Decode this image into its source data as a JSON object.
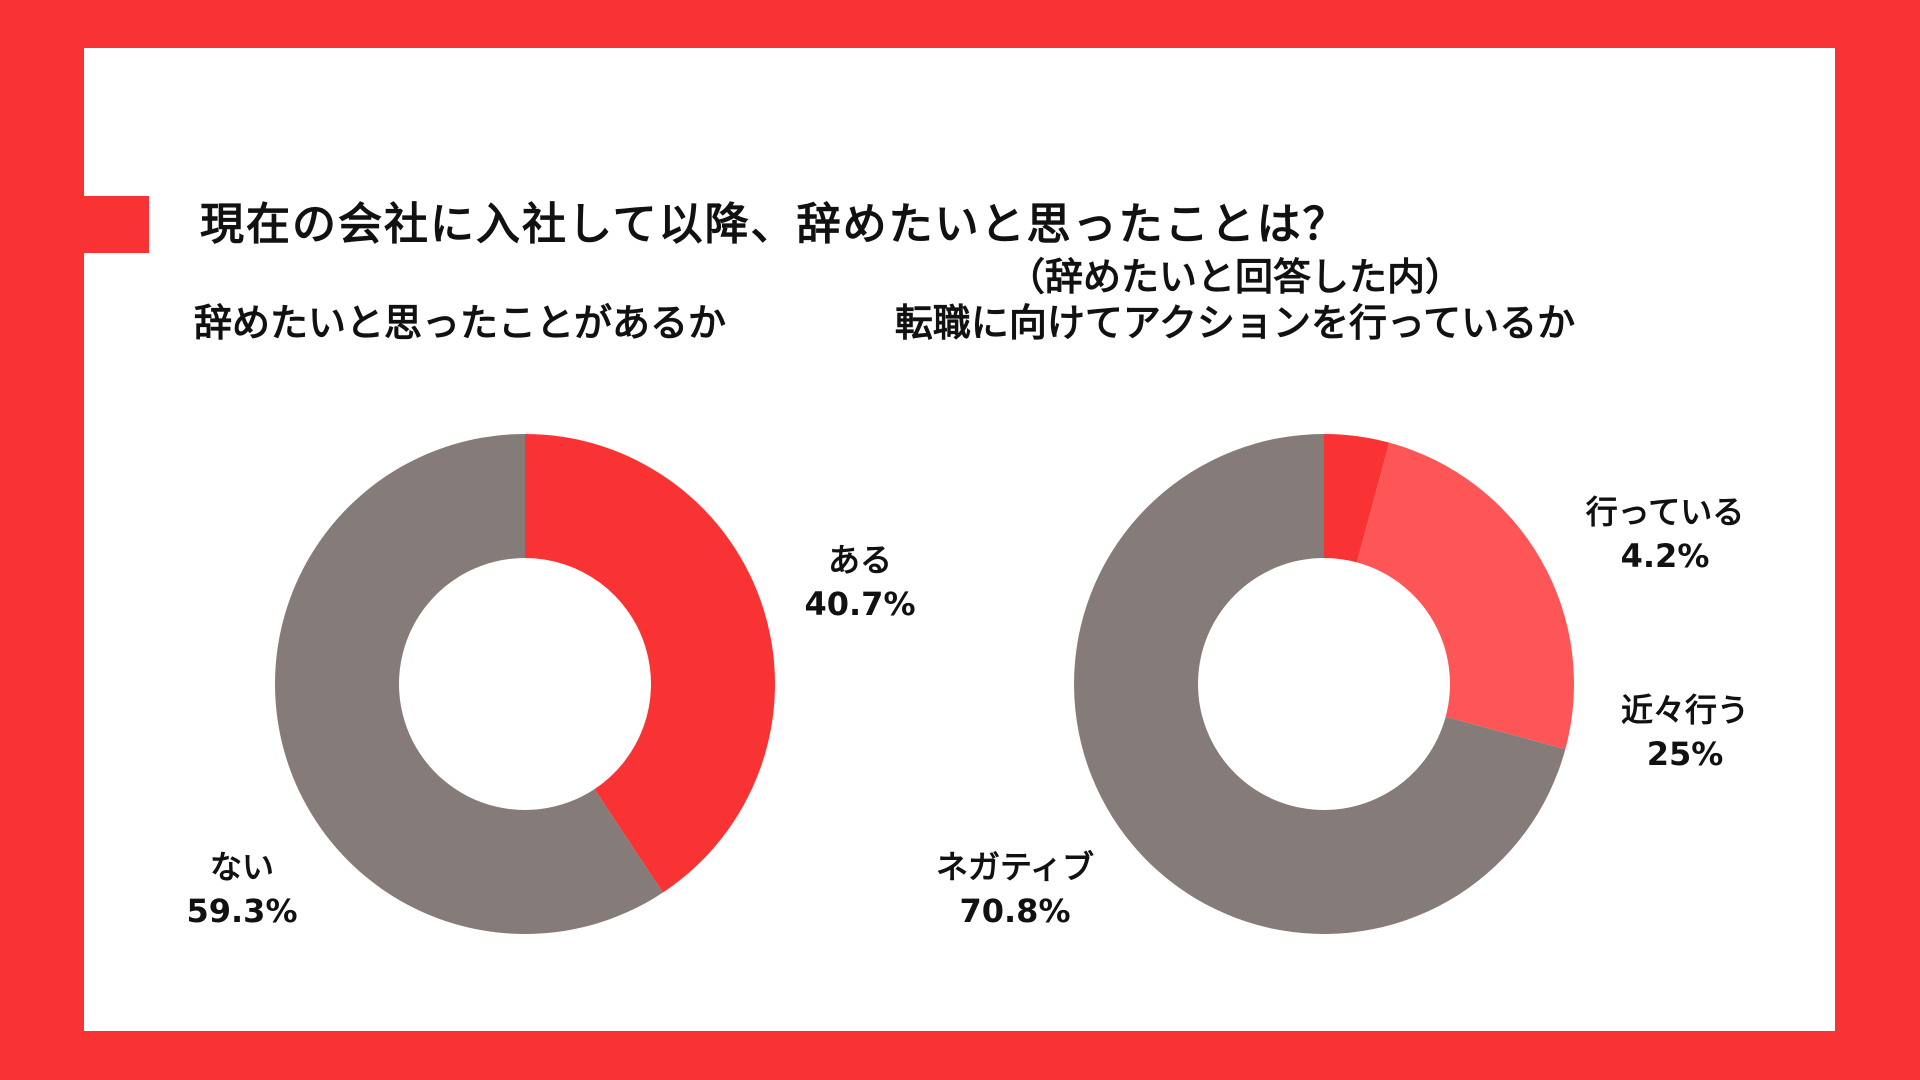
{
  "title": "現在の会社に入社して以降、辞めたいと思ったことは？",
  "colors": {
    "frame": "#f93234",
    "background": "#ffffff",
    "red": "#f93234",
    "light_red": "#fe5656",
    "gray": "#857b79"
  },
  "chart_data": [
    {
      "type": "pie",
      "style": "donut",
      "title": "辞めたいと思ったことがあるか",
      "slices": [
        {
          "label": "ある",
          "value_label": "40.7%",
          "value": 40.7,
          "color": "#f93234"
        },
        {
          "label": "ない",
          "value_label": "59.3%",
          "value": 59.3,
          "color": "#857b79"
        }
      ]
    },
    {
      "type": "pie",
      "style": "donut",
      "title_line1": "（辞めたいと回答した内）",
      "title_line2": "転職に向けてアクションを行っているか",
      "slices": [
        {
          "label": "行っている",
          "value_label": "4.2%",
          "value": 4.2,
          "color": "#f93234"
        },
        {
          "label": "近々行う",
          "value_label": "25%",
          "value": 25,
          "color": "#fe5656"
        },
        {
          "label": "ネガティブ",
          "value_label": "70.8%",
          "value": 70.8,
          "color": "#857b79"
        }
      ]
    }
  ]
}
